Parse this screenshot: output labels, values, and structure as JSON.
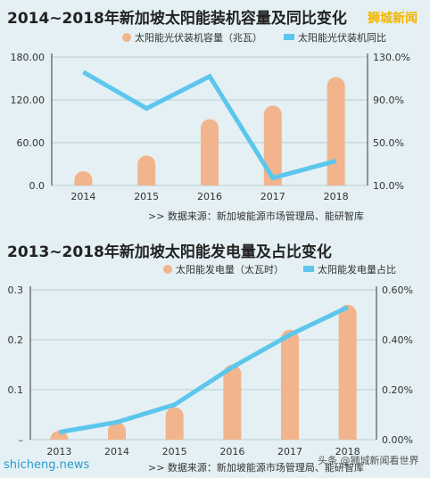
{
  "brand": {
    "logo_text": "狮城新闻"
  },
  "watermarks": {
    "left": "shicheng.news",
    "right": "头条 @狮城新闻看世界"
  },
  "chart_data": [
    {
      "type": "bar",
      "title": "2014~2018年新加坡太阳能装机容量及同比变化",
      "categories": [
        "2014",
        "2015",
        "2016",
        "2017",
        "2018"
      ],
      "series": [
        {
          "name": "太阳能光伏装机容量（兆瓦）",
          "kind": "bar",
          "axis": "left",
          "values": [
            20,
            42,
            93,
            112,
            152
          ],
          "color": "#f2b48c"
        },
        {
          "name": "太阳能光伏装机同比",
          "kind": "line",
          "axis": "right",
          "values": [
            116,
            82,
            112,
            17,
            33
          ],
          "unit": "%",
          "color": "#5cc6ec"
        }
      ],
      "y_left": {
        "ylim": [
          0,
          180
        ],
        "ticks": [
          "0.0",
          "60.00",
          "120.00",
          "180.00"
        ],
        "tick_values": [
          0,
          60,
          120,
          180
        ]
      },
      "y_right": {
        "ylim": [
          10,
          130
        ],
        "ticks": [
          "10.0%",
          "50.0%",
          "90.0%",
          "130.0%"
        ],
        "tick_values": [
          10,
          50,
          90,
          130
        ]
      },
      "legend_placement": "top-right",
      "source": ">>  数据来源：新加坡能源市场管理局、能研智库"
    },
    {
      "type": "bar",
      "title": "2013~2018年新加坡太阳能发电量及占比变化",
      "categories": [
        "2013",
        "2014",
        "2015",
        "2016",
        "2017",
        "2018"
      ],
      "series": [
        {
          "name": "太阳能发电量（太瓦时）",
          "kind": "bar",
          "axis": "left",
          "values": [
            0.01,
            0.035,
            0.065,
            0.15,
            0.22,
            0.27
          ],
          "color": "#f2b48c"
        },
        {
          "name": "太阳能发电量占比",
          "kind": "line",
          "axis": "right",
          "values": [
            0.03,
            0.07,
            0.14,
            0.29,
            0.42,
            0.53
          ],
          "unit": "%",
          "color": "#5cc6ec"
        }
      ],
      "y_left": {
        "ylim": [
          0,
          0.3
        ],
        "ticks": [
          "–",
          "0.1",
          "0.2",
          "0.3"
        ],
        "tick_values": [
          0,
          0.1,
          0.2,
          0.3
        ]
      },
      "y_right": {
        "ylim": [
          0,
          0.6
        ],
        "ticks": [
          "0.00%",
          "0.20%",
          "0.40%",
          "0.60%"
        ],
        "tick_values": [
          0,
          0.2,
          0.4,
          0.6
        ]
      },
      "legend_placement": "top-right",
      "source": ">>  数据来源：新加坡能源市场管理局、能研智库"
    }
  ]
}
